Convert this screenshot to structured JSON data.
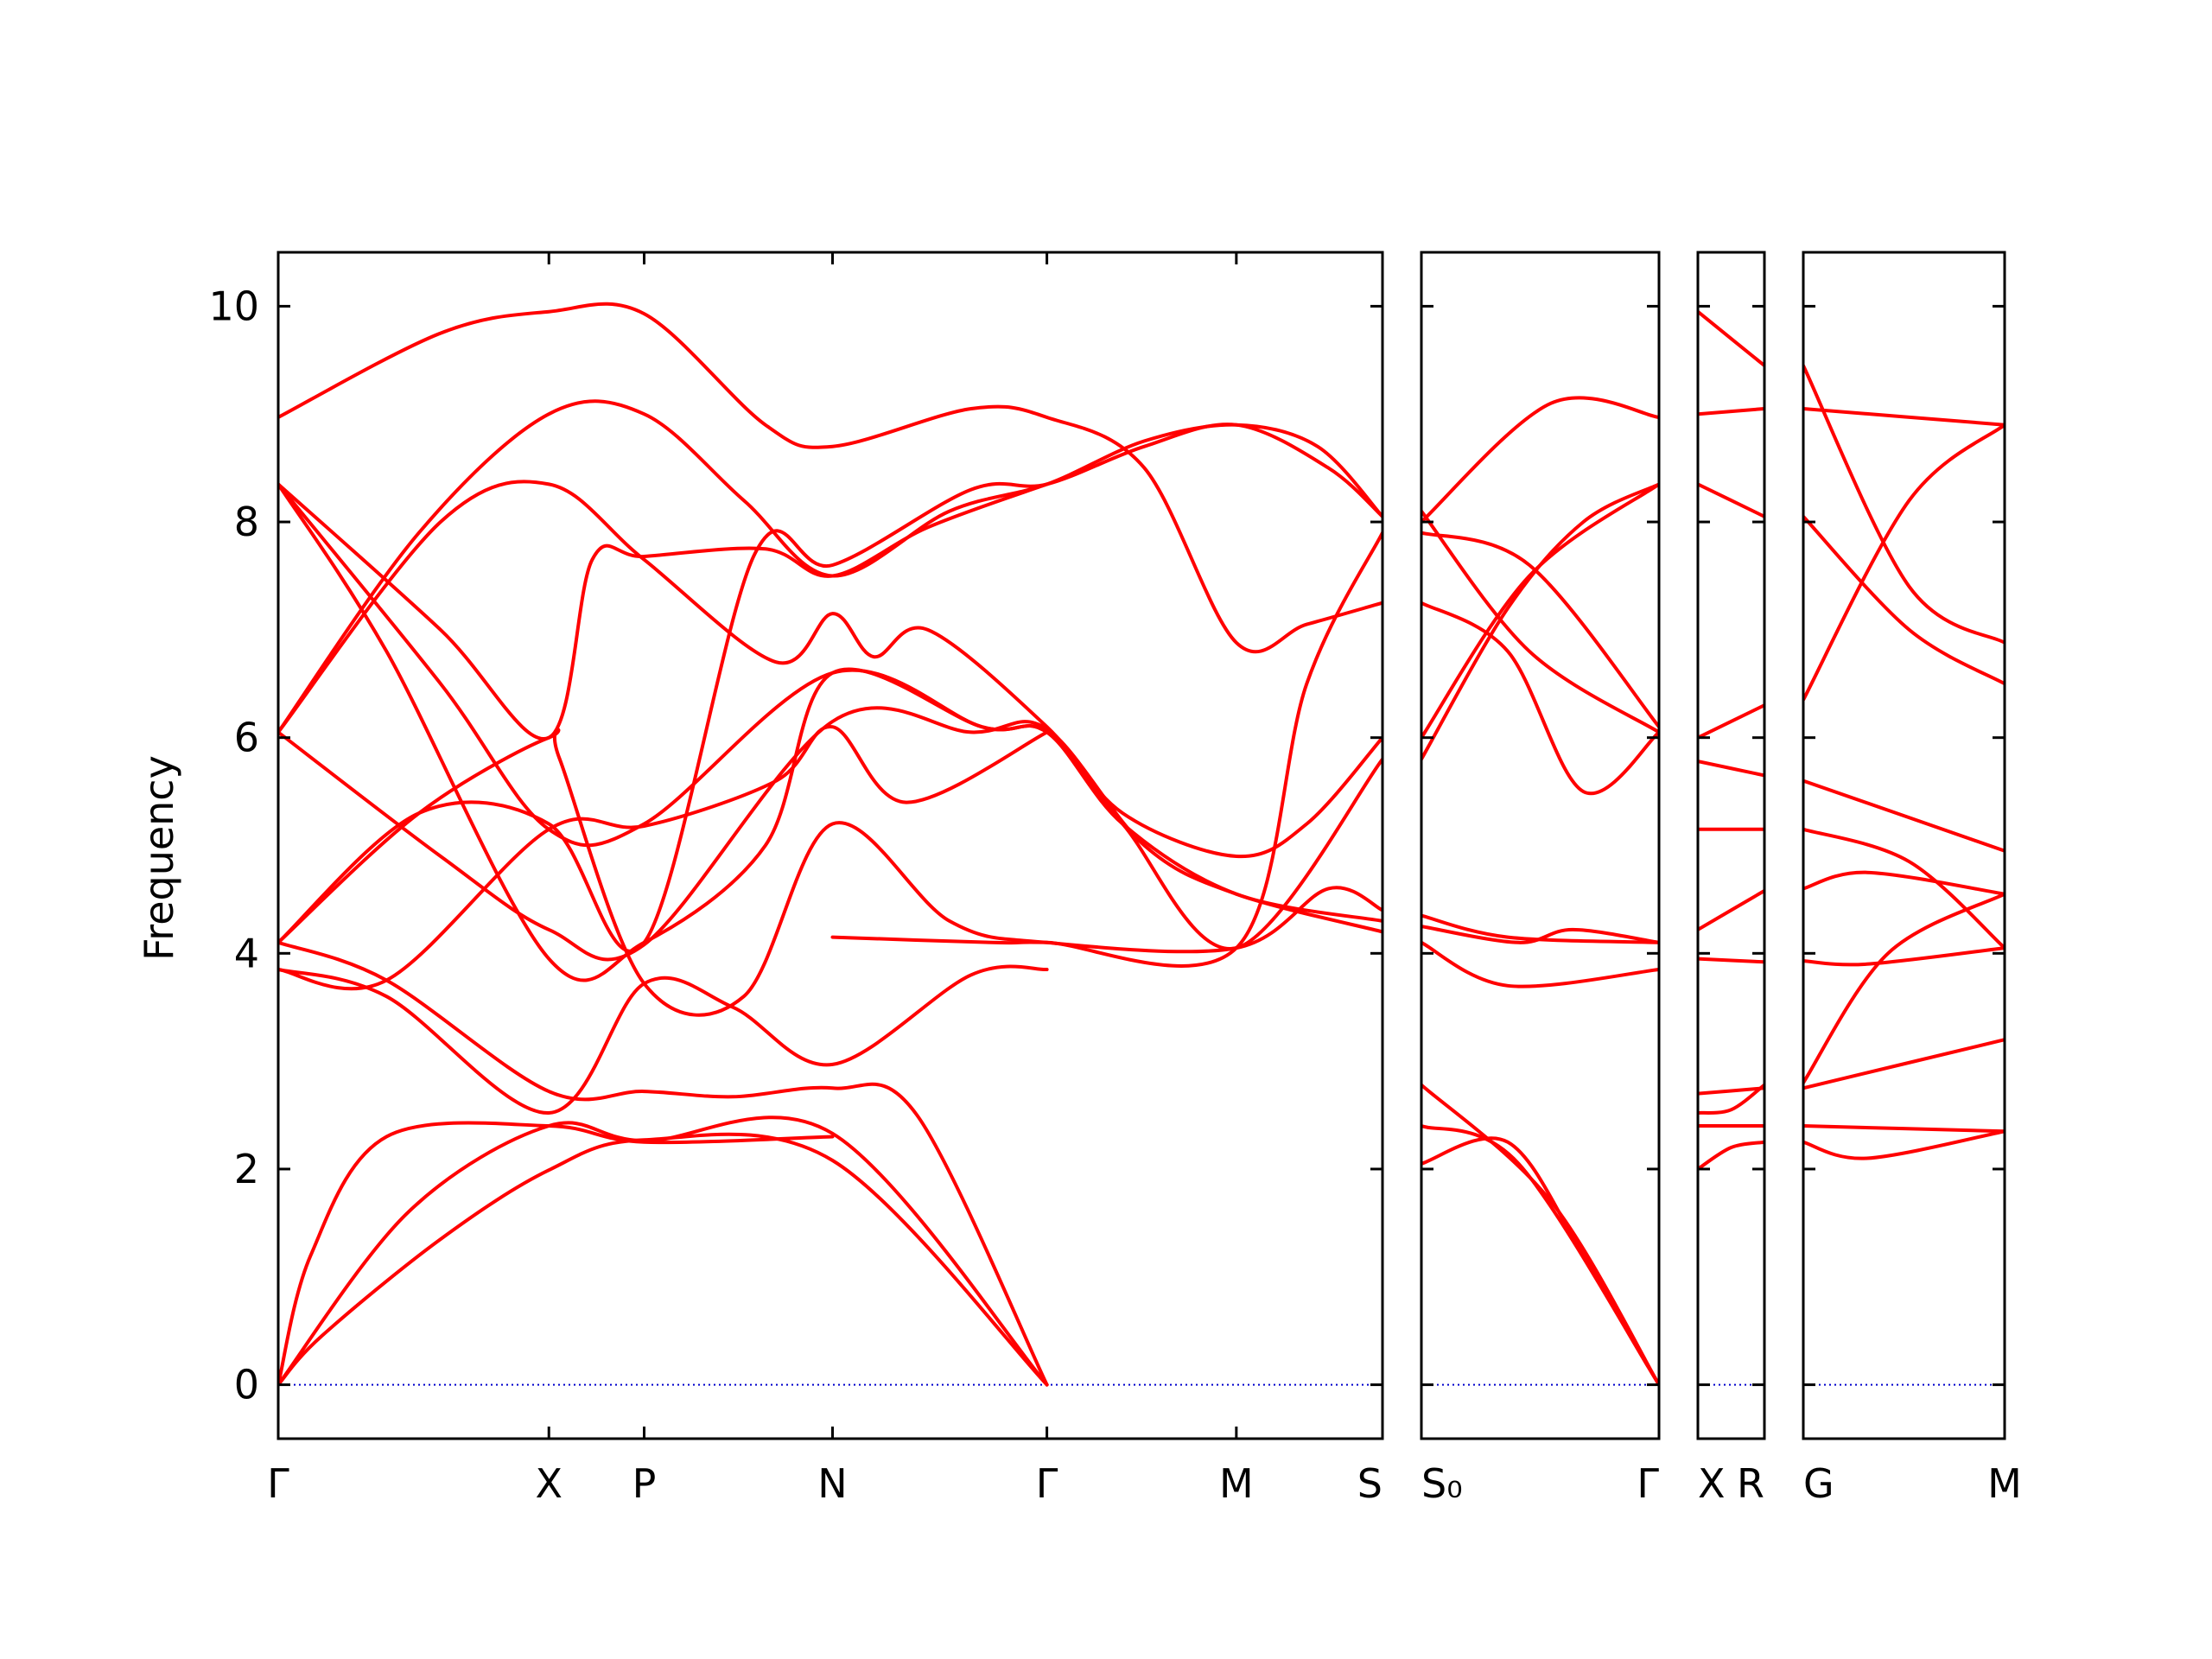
{
  "chart_data": {
    "type": "line",
    "ylabel": "Frequency",
    "ylim": [
      -0.5,
      10.5
    ],
    "yticks": [
      0,
      2,
      4,
      6,
      8,
      10
    ],
    "grid": false,
    "legend": "none",
    "colors": {
      "bands": "#ff0000",
      "zero_line": "#0000cc",
      "frame": "#000000"
    },
    "panels": [
      {
        "labels": [
          "Γ",
          "X",
          "P",
          "N",
          "Γ",
          "M",
          "S"
        ],
        "x": [
          0,
          2.5,
          3.38,
          5.12,
          7.1,
          8.85,
          10.2
        ],
        "bands": [
          [
            [
              0,
              0
            ],
            [
              0.4,
              0.45
            ],
            [
              1.5,
              1.35
            ],
            [
              2.5,
              1.99
            ],
            [
              3.38,
              2.27
            ],
            [
              5.12,
              2.08
            ],
            [
              7.1,
              0
            ]
          ],
          [
            [
              0,
              0
            ],
            [
              1.2,
              1.6
            ],
            [
              2.5,
              2.4
            ],
            [
              3.38,
              2.26
            ],
            [
              5.12,
              2.33
            ],
            [
              7.1,
              0
            ]
          ],
          [
            [
              0,
              0
            ],
            [
              0.3,
              1.2
            ],
            [
              1.0,
              2.3
            ],
            [
              2.5,
              2.4
            ],
            [
              3.38,
              2.25
            ],
            [
              5.12,
              2.3
            ]
          ],
          [
            [
              0,
              3.85
            ],
            [
              1.0,
              3.6
            ],
            [
              2.5,
              2.52
            ],
            [
              3.38,
              3.72
            ],
            [
              4.2,
              3.5
            ],
            [
              5.12,
              2.97
            ],
            [
              6.4,
              3.8
            ],
            [
              7.1,
              3.85
            ]
          ],
          [
            [
              0,
              4.1
            ],
            [
              1.0,
              3.75
            ],
            [
              2.5,
              2.72
            ],
            [
              3.38,
              2.72
            ],
            [
              4.2,
              2.67
            ],
            [
              5.12,
              2.75
            ],
            [
              5.9,
              2.5
            ],
            [
              7.1,
              0
            ]
          ],
          [
            [
              0,
              6.05
            ],
            [
              1.5,
              4.9
            ],
            [
              2.5,
              4.22
            ],
            [
              3.38,
              4.08
            ],
            [
              5.12,
              6.15
            ],
            [
              6.4,
              6.05
            ],
            [
              7.1,
              6.08
            ],
            [
              8.0,
              5.0
            ],
            [
              8.85,
              4.55
            ],
            [
              10.2,
              4.2
            ]
          ],
          [
            [
              0,
              4.1
            ],
            [
              1.3,
              5.3
            ],
            [
              2.5,
              6.0
            ],
            [
              2.6,
              5.8
            ],
            [
              3.38,
              3.72
            ],
            [
              4.3,
              3.6
            ],
            [
              5.12,
              5.2
            ],
            [
              6.2,
              4.3
            ],
            [
              7.1,
              4.1
            ],
            [
              8.85,
              4.05
            ],
            [
              9.7,
              4.6
            ],
            [
              10.2,
              4.4
            ]
          ],
          [
            [
              0,
              8.35
            ],
            [
              1.0,
              6.8
            ],
            [
              2.5,
              3.95
            ],
            [
              3.38,
              4.1
            ],
            [
              4.5,
              5.0
            ],
            [
              5.12,
              6.6
            ],
            [
              6.5,
              6.1
            ],
            [
              7.1,
              6.05
            ],
            [
              7.8,
              5.2
            ],
            [
              8.85,
              4.05
            ],
            [
              10.2,
              5.8
            ]
          ],
          [
            [
              0,
              6.05
            ],
            [
              1.5,
              8.0
            ],
            [
              2.5,
              8.35
            ],
            [
              3.38,
              7.65
            ],
            [
              4.6,
              6.7
            ],
            [
              5.12,
              7.15
            ],
            [
              5.5,
              6.75
            ],
            [
              6.0,
              7.0
            ],
            [
              7.1,
              6.1
            ],
            [
              7.8,
              5.3
            ],
            [
              8.85,
              4.9
            ],
            [
              9.5,
              5.2
            ],
            [
              10.2,
              6.0
            ]
          ],
          [
            [
              0,
              6.05
            ],
            [
              1.3,
              7.9
            ],
            [
              2.5,
              9.0
            ],
            [
              3.38,
              9.0
            ],
            [
              4.3,
              8.2
            ],
            [
              5.12,
              7.5
            ],
            [
              6.2,
              8.1
            ],
            [
              7.1,
              8.35
            ],
            [
              8.0,
              8.75
            ],
            [
              8.85,
              8.9
            ],
            [
              9.6,
              8.7
            ],
            [
              10.2,
              8.05
            ]
          ],
          [
            [
              0,
              8.97
            ],
            [
              1.5,
              9.75
            ],
            [
              2.5,
              9.95
            ],
            [
              3.38,
              9.93
            ],
            [
              4.5,
              8.9
            ],
            [
              5.12,
              8.7
            ],
            [
              6.4,
              9.05
            ],
            [
              7.1,
              8.97
            ],
            [
              8.0,
              8.5
            ],
            [
              8.85,
              6.88
            ],
            [
              9.5,
              7.05
            ],
            [
              10.2,
              7.25
            ]
          ],
          [
            [
              0,
              8.35
            ],
            [
              1.5,
              6.5
            ],
            [
              2.5,
              5.15
            ],
            [
              3.38,
              5.2
            ],
            [
              5.12,
              6.6
            ],
            [
              6.5,
              6.1
            ],
            [
              7.1,
              6.05
            ],
            [
              7.8,
              5.2
            ],
            [
              8.85,
              4.55
            ],
            [
              10.2,
              4.3
            ]
          ],
          [
            [
              0,
              4.1
            ],
            [
              1.3,
              5.3
            ],
            [
              2.5,
              5.2
            ],
            [
              3.38,
              4.1
            ],
            [
              4.4,
              7.7
            ],
            [
              5.12,
              7.6
            ],
            [
              6.4,
              8.3
            ],
            [
              7.1,
              8.35
            ],
            [
              8.0,
              8.7
            ],
            [
              8.85,
              8.9
            ],
            [
              9.7,
              8.5
            ],
            [
              10.2,
              8.05
            ]
          ],
          [
            [
              0,
              8.35
            ],
            [
              1.5,
              7.0
            ],
            [
              2.5,
              6.0
            ],
            [
              2.9,
              7.65
            ],
            [
              3.38,
              7.68
            ],
            [
              4.5,
              7.75
            ],
            [
              5.12,
              7.5
            ],
            [
              6.0,
              7.95
            ],
            [
              7.1,
              8.35
            ]
          ],
          [
            [
              0,
              3.85
            ],
            [
              1.0,
              3.75
            ],
            [
              2.5,
              5.15
            ],
            [
              3.38,
              5.18
            ],
            [
              4.6,
              5.6
            ],
            [
              5.12,
              6.1
            ],
            [
              5.8,
              5.4
            ],
            [
              7.1,
              6.05
            ]
          ],
          [
            [
              5.12,
              4.15
            ],
            [
              6.6,
              4.1
            ],
            [
              7.1,
              4.1
            ],
            [
              8.85,
              4.05
            ],
            [
              9.5,
              6.5
            ],
            [
              10.2,
              7.9
            ]
          ]
        ]
      },
      {
        "labels": [
          "S₀",
          "Γ"
        ],
        "x": [
          0,
          2.2
        ],
        "bands": [
          [
            [
              0,
              2.05
            ],
            [
              0.8,
              2.25
            ],
            [
              1.5,
              1.2
            ],
            [
              2.2,
              0
            ]
          ],
          [
            [
              0,
              2.4
            ],
            [
              0.9,
              2.05
            ],
            [
              2.2,
              0
            ]
          ],
          [
            [
              0,
              2.78
            ],
            [
              1.2,
              1.7
            ],
            [
              2.2,
              0
            ]
          ],
          [
            [
              0,
              4.1
            ],
            [
              0.8,
              3.7
            ],
            [
              2.2,
              3.85
            ]
          ],
          [
            [
              0,
              4.25
            ],
            [
              0.9,
              4.1
            ],
            [
              1.4,
              4.22
            ],
            [
              2.2,
              4.1
            ]
          ],
          [
            [
              0,
              4.35
            ],
            [
              0.8,
              4.15
            ],
            [
              2.2,
              4.1
            ]
          ],
          [
            [
              0,
              5.8
            ],
            [
              0.8,
              7.2
            ],
            [
              1.5,
              8.0
            ],
            [
              2.2,
              8.35
            ]
          ],
          [
            [
              0,
              7.25
            ],
            [
              0.8,
              6.8
            ],
            [
              1.5,
              5.5
            ],
            [
              2.2,
              6.05
            ]
          ],
          [
            [
              0,
              8.0
            ],
            [
              1.2,
              9.1
            ],
            [
              2.2,
              8.97
            ]
          ],
          [
            [
              0,
              8.1
            ],
            [
              1.0,
              6.8
            ],
            [
              2.2,
              6.05
            ]
          ],
          [
            [
              0,
              6.0
            ],
            [
              1.0,
              7.5
            ],
            [
              2.2,
              8.35
            ]
          ],
          [
            [
              0,
              7.9
            ],
            [
              1.0,
              7.6
            ],
            [
              2.2,
              6.1
            ]
          ]
        ]
      },
      {
        "labels": [
          "X",
          "R"
        ],
        "x": [
          0,
          0.6
        ],
        "bands": [
          [
            [
              0,
              2.0
            ],
            [
              0.3,
              2.2
            ],
            [
              0.6,
              2.25
            ]
          ],
          [
            [
              0,
              2.4
            ],
            [
              0.6,
              2.4
            ]
          ],
          [
            [
              0,
              2.52
            ],
            [
              0.3,
              2.55
            ],
            [
              0.6,
              2.78
            ]
          ],
          [
            [
              0,
              2.7
            ],
            [
              0.6,
              2.75
            ]
          ],
          [
            [
              0,
              3.95
            ],
            [
              0.6,
              3.92
            ]
          ],
          [
            [
              0,
              4.22
            ],
            [
              0.6,
              4.58
            ]
          ],
          [
            [
              0,
              5.15
            ],
            [
              0.6,
              5.15
            ]
          ],
          [
            [
              0,
              5.78
            ],
            [
              0.6,
              5.65
            ]
          ],
          [
            [
              0,
              6.0
            ],
            [
              0.6,
              6.3
            ]
          ],
          [
            [
              0,
              8.35
            ],
            [
              0.6,
              8.05
            ]
          ],
          [
            [
              0,
              9.0
            ],
            [
              0.6,
              9.05
            ]
          ],
          [
            [
              0,
              9.95
            ],
            [
              0.6,
              9.45
            ]
          ]
        ]
      },
      {
        "labels": [
          "G",
          "M"
        ],
        "x": [
          0,
          1.9
        ],
        "bands": [
          [
            [
              0,
              2.25
            ],
            [
              0.6,
              2.1
            ],
            [
              1.9,
              2.35
            ]
          ],
          [
            [
              0,
              2.4
            ],
            [
              1.9,
              2.35
            ]
          ],
          [
            [
              0,
              2.75
            ],
            [
              1.9,
              3.2
            ]
          ],
          [
            [
              0,
              2.8
            ],
            [
              0.8,
              4.0
            ],
            [
              1.9,
              4.55
            ]
          ],
          [
            [
              0,
              3.93
            ],
            [
              0.6,
              3.9
            ],
            [
              1.9,
              4.05
            ]
          ],
          [
            [
              0,
              4.6
            ],
            [
              0.6,
              4.75
            ],
            [
              1.9,
              4.55
            ]
          ],
          [
            [
              0,
              5.15
            ],
            [
              1.0,
              4.85
            ],
            [
              1.9,
              4.05
            ]
          ],
          [
            [
              0,
              5.6
            ],
            [
              1.9,
              4.95
            ]
          ],
          [
            [
              0,
              6.35
            ],
            [
              1.0,
              8.2
            ],
            [
              1.9,
              8.9
            ]
          ],
          [
            [
              0,
              8.05
            ],
            [
              1.0,
              7.0
            ],
            [
              1.9,
              6.5
            ]
          ],
          [
            [
              0,
              9.05
            ],
            [
              1.9,
              8.9
            ]
          ],
          [
            [
              0,
              9.45
            ],
            [
              1.0,
              7.4
            ],
            [
              1.9,
              6.88
            ]
          ]
        ]
      }
    ]
  }
}
